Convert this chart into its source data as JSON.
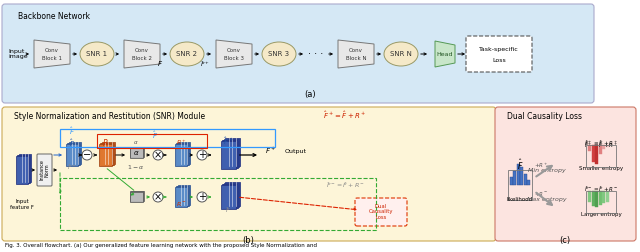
{
  "fig_width": 6.4,
  "fig_height": 2.52,
  "dpi": 100,
  "bg_color": "#ffffff",
  "backbone_bg": "#d5e8f5",
  "snr_module_bg": "#fdf5d8",
  "dual_loss_bg": "#fce4e0",
  "caption": "Fig. 3. Overall flowchart. (a) Our generalized feature learning network with the proposed Style Normalization and",
  "panel_a_label": "(a)",
  "panel_b_label": "(b)",
  "panel_c_label": "(c)",
  "conv_color": "#e8e8e8",
  "snr_color": "#f5e9c8",
  "head_color": "#c8e6c9",
  "tensor_blue": "#5b8cc8",
  "tensor_blue_dark": "#2a5090",
  "tensor_orange": "#e07830",
  "tensor_orange_dark": "#a04010"
}
